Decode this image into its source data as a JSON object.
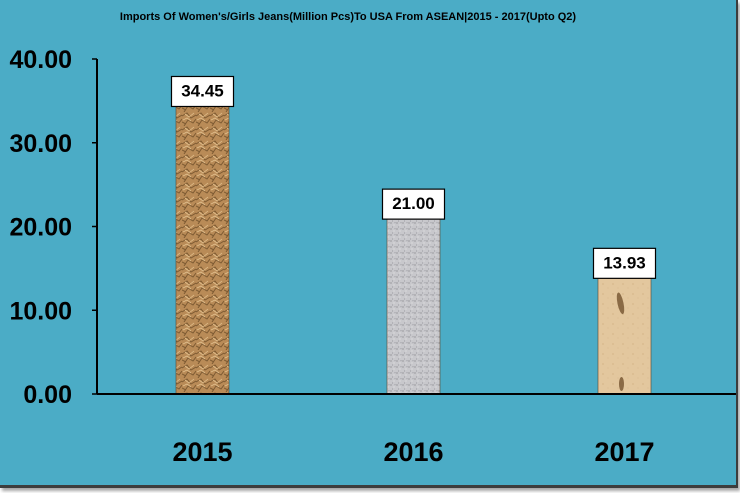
{
  "colors": {
    "background": "#4bacc6",
    "bar_2015": "#b98b57",
    "bar_2016": "#c8c8cc",
    "bar_2017": "#e3c79e",
    "label_box": "#ffffff"
  },
  "chart_data": {
    "type": "bar",
    "title": "Imports Of Women's/Girls Jeans(Million Pcs)To USA From ASEAN|2015 - 2017(Upto Q2)",
    "categories": [
      "2015",
      "2016",
      "2017"
    ],
    "values": [
      34.45,
      21.0,
      13.93
    ],
    "data_labels": [
      "34.45",
      "21.00",
      "13.93"
    ],
    "yticks": [
      "0.00",
      "10.00",
      "20.00",
      "30.00",
      "40.00"
    ],
    "ytick_values": [
      0,
      10,
      20,
      30,
      40
    ],
    "ylim": [
      0,
      40
    ],
    "xlabel": "",
    "ylabel": "",
    "grid": false,
    "legend": "none"
  }
}
